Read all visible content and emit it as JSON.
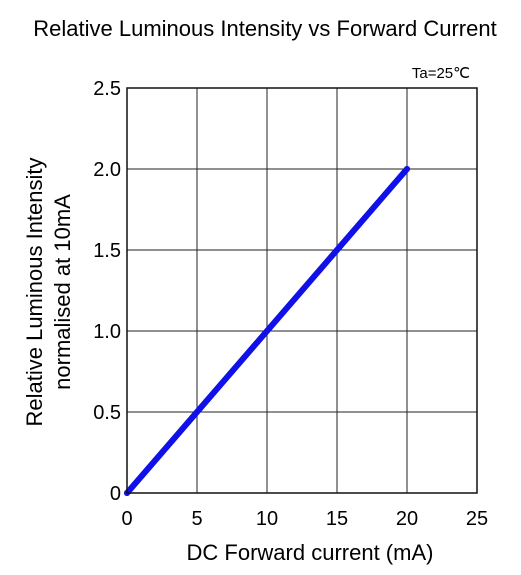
{
  "chart_data": {
    "type": "line",
    "title": "Relative Luminous Intensity vs Forward Current",
    "xlabel": "DC Forward current (mA)",
    "ylabel_line1": "Relative Luminous Intensity",
    "ylabel_line2": "normalised at 10mA",
    "annotation": "Ta=25℃",
    "xlim": [
      0,
      25
    ],
    "ylim": [
      0,
      2.5
    ],
    "x_ticks": [
      0,
      5,
      10,
      15,
      20,
      25
    ],
    "x_tick_labels": [
      "0",
      "5",
      "10",
      "15",
      "20",
      "25"
    ],
    "y_ticks": [
      0,
      0.5,
      1.0,
      1.5,
      2.0,
      2.5
    ],
    "y_tick_labels": [
      "0",
      "0.5",
      "1.0",
      "1.5",
      "2.0",
      "2.5"
    ],
    "grid": true,
    "series": [
      {
        "color": "#1010e8",
        "x": [
          0,
          5,
          10,
          15,
          20
        ],
        "y": [
          0,
          0.5,
          1.0,
          1.5,
          2.0
        ]
      }
    ]
  }
}
